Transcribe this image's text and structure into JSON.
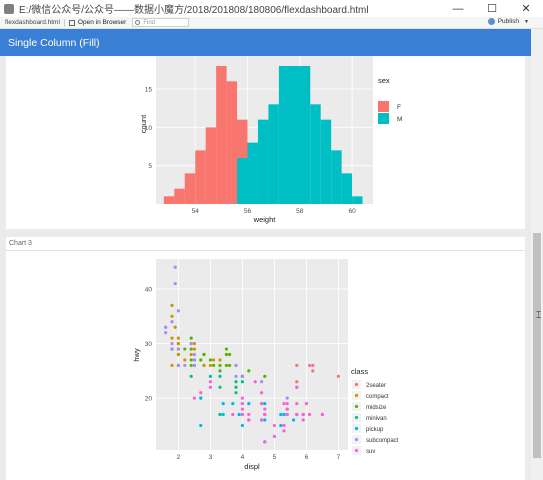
{
  "window": {
    "title": "E:/微信公众号/公众号——数据小魔方/2018/201808/180806/flexdashboard.html",
    "minimize": "—",
    "maximize": "☐",
    "close": "✕"
  },
  "toolbar": {
    "file_name": "flexdashboard.html",
    "open_in_browser": "Open in Browser",
    "find_placeholder": "Find",
    "publish": "Publish"
  },
  "navbar": {
    "title": "Single Column (Fill)"
  },
  "chart2": {
    "title": ""
  },
  "chart3": {
    "title": "Chart 3"
  },
  "chart_data": [
    {
      "type": "bar",
      "subtype": "histogram",
      "xlabel": "weight",
      "ylabel": "count",
      "x_ticks": [
        54,
        56,
        58,
        60
      ],
      "y_ticks": [
        5,
        10,
        15
      ],
      "legend_title": "sex",
      "legend_position": "right",
      "series": [
        {
          "name": "F",
          "color": "#f8766d",
          "bins": [
            {
              "x0": 52.8,
              "x1": 53.2,
              "count": 1
            },
            {
              "x0": 53.2,
              "x1": 53.6,
              "count": 2
            },
            {
              "x0": 53.6,
              "x1": 54.0,
              "count": 4
            },
            {
              "x0": 54.0,
              "x1": 54.4,
              "count": 7
            },
            {
              "x0": 54.4,
              "x1": 54.8,
              "count": 10
            },
            {
              "x0": 54.8,
              "x1": 55.2,
              "count": 18
            },
            {
              "x0": 55.2,
              "x1": 55.6,
              "count": 16
            },
            {
              "x0": 55.6,
              "x1": 56.0,
              "count": 11
            }
          ]
        },
        {
          "name": "M",
          "color": "#00bfc4",
          "bins": [
            {
              "x0": 55.6,
              "x1": 56.0,
              "count": 6
            },
            {
              "x0": 56.0,
              "x1": 56.4,
              "count": 8
            },
            {
              "x0": 56.4,
              "x1": 56.8,
              "count": 11
            },
            {
              "x0": 56.8,
              "x1": 57.2,
              "count": 13
            },
            {
              "x0": 57.2,
              "x1": 58.4,
              "count": 18
            },
            {
              "x0": 58.4,
              "x1": 58.8,
              "count": 13
            },
            {
              "x0": 58.8,
              "x1": 59.2,
              "count": 11
            },
            {
              "x0": 59.2,
              "x1": 59.6,
              "count": 7
            },
            {
              "x0": 59.6,
              "x1": 60.0,
              "count": 4
            },
            {
              "x0": 60.0,
              "x1": 60.4,
              "count": 1
            }
          ]
        }
      ],
      "xlim": [
        52.5,
        60.8
      ],
      "ylim": [
        0,
        18
      ]
    },
    {
      "type": "scatter",
      "xlabel": "displ",
      "ylabel": "hwy",
      "x_ticks": [
        2,
        3,
        4,
        5,
        6,
        7
      ],
      "y_ticks": [
        20,
        30,
        40
      ],
      "xlim": [
        1.3,
        7.3
      ],
      "ylim": [
        10.5,
        45.5
      ],
      "legend_title": "class",
      "legend_position": "right",
      "series": [
        {
          "name": "2seater",
          "color": "#f8766d",
          "points": [
            [
              5.7,
              26
            ],
            [
              5.7,
              23
            ],
            [
              6.2,
              26
            ],
            [
              6.2,
              25
            ],
            [
              7.0,
              24
            ]
          ]
        },
        {
          "name": "compact",
          "color": "#c49a00",
          "points": [
            [
              1.8,
              29
            ],
            [
              1.8,
              29
            ],
            [
              2.0,
              31
            ],
            [
              2.0,
              30
            ],
            [
              2.8,
              26
            ],
            [
              2.8,
              26
            ],
            [
              3.1,
              27
            ],
            [
              1.8,
              26
            ],
            [
              2.0,
              28
            ],
            [
              2.2,
              27
            ],
            [
              2.4,
              30
            ],
            [
              2.5,
              29
            ],
            [
              2.5,
              30
            ],
            [
              3.0,
              26
            ],
            [
              3.3,
              27
            ],
            [
              1.9,
              33
            ],
            [
              2.0,
              28
            ],
            [
              2.4,
              28
            ],
            [
              2.8,
              26
            ],
            [
              1.8,
              31
            ],
            [
              1.8,
              35
            ],
            [
              1.8,
              37
            ],
            [
              2.0,
              29
            ],
            [
              2.0,
              30
            ],
            [
              2.8,
              28
            ]
          ]
        },
        {
          "name": "midsize",
          "color": "#53b400",
          "points": [
            [
              2.4,
              29
            ],
            [
              2.4,
              26
            ],
            [
              3.1,
              26
            ],
            [
              3.5,
              29
            ],
            [
              3.6,
              26
            ],
            [
              2.5,
              27
            ],
            [
              2.7,
              27
            ],
            [
              3.3,
              26
            ],
            [
              3.8,
              26
            ],
            [
              2.4,
              31
            ],
            [
              3.5,
              26
            ],
            [
              4.0,
              24
            ],
            [
              4.7,
              24
            ],
            [
              4.2,
              25
            ],
            [
              1.8,
              29
            ],
            [
              2.2,
              29
            ],
            [
              2.5,
              26
            ],
            [
              3.0,
              27
            ],
            [
              3.3,
              25
            ],
            [
              2.0,
              26
            ],
            [
              3.6,
              28
            ],
            [
              2.8,
              28
            ],
            [
              3.5,
              28
            ],
            [
              2.4,
              27
            ]
          ]
        },
        {
          "name": "minivan",
          "color": "#00c094",
          "points": [
            [
              2.4,
              24
            ],
            [
              3.0,
              24
            ],
            [
              3.3,
              22
            ],
            [
              3.3,
              24
            ],
            [
              3.8,
              22
            ],
            [
              3.8,
              23
            ],
            [
              4.0,
              24
            ],
            [
              3.3,
              17
            ],
            [
              3.8,
              21
            ],
            [
              4.0,
              23
            ]
          ]
        },
        {
          "name": "pickup",
          "color": "#00b6eb",
          "points": [
            [
              2.7,
              20
            ],
            [
              2.7,
              15
            ],
            [
              3.4,
              17
            ],
            [
              3.4,
              19
            ],
            [
              4.0,
              17
            ],
            [
              4.7,
              17
            ],
            [
              4.7,
              12
            ],
            [
              5.2,
              17
            ],
            [
              5.7,
              17
            ],
            [
              5.9,
              17
            ],
            [
              4.7,
              16
            ],
            [
              5.3,
              17
            ],
            [
              5.6,
              16
            ],
            [
              4.6,
              16
            ],
            [
              5.4,
              17
            ],
            [
              3.7,
              19
            ],
            [
              3.9,
              17
            ],
            [
              4.7,
              19
            ],
            [
              2.7,
              20
            ],
            [
              4.0,
              15
            ],
            [
              4.6,
              19
            ],
            [
              5.4,
              18
            ],
            [
              4.2,
              19
            ],
            [
              4.7,
              17
            ],
            [
              5.2,
              15
            ]
          ]
        },
        {
          "name": "subcompact",
          "color": "#a58aff",
          "points": [
            [
              1.6,
              33
            ],
            [
              1.6,
              32
            ],
            [
              1.8,
              29
            ],
            [
              1.8,
              34
            ],
            [
              2.0,
              36
            ],
            [
              1.9,
              44
            ],
            [
              1.9,
              44
            ],
            [
              1.9,
              41
            ],
            [
              2.0,
              29
            ],
            [
              2.5,
              26
            ],
            [
              2.5,
              28
            ],
            [
              2.2,
              26
            ],
            [
              2.4,
              30
            ],
            [
              3.8,
              26
            ],
            [
              4.6,
              23
            ],
            [
              5.4,
              20
            ],
            [
              1.6,
              33
            ],
            [
              2.0,
              26
            ],
            [
              1.8,
              30
            ],
            [
              3.8,
              24
            ],
            [
              4.0,
              24
            ],
            [
              2.5,
              27
            ]
          ]
        },
        {
          "name": "suv",
          "color": "#fb61d7",
          "points": [
            [
              4.0,
              17
            ],
            [
              4.7,
              17
            ],
            [
              5.3,
              19
            ],
            [
              5.7,
              19
            ],
            [
              6.5,
              17
            ],
            [
              5.7,
              17
            ],
            [
              5.0,
              15
            ],
            [
              5.3,
              15
            ],
            [
              6.0,
              19
            ],
            [
              4.7,
              12
            ],
            [
              5.7,
              22
            ],
            [
              6.1,
              26
            ],
            [
              5.3,
              14
            ],
            [
              4.2,
              17
            ],
            [
              4.6,
              19
            ],
            [
              5.4,
              19
            ],
            [
              4.0,
              19
            ],
            [
              4.6,
              16
            ],
            [
              5.4,
              18
            ],
            [
              3.0,
              22
            ],
            [
              3.7,
              17
            ],
            [
              4.0,
              18
            ],
            [
              4.7,
              18
            ],
            [
              5.7,
              17
            ],
            [
              5.9,
              16
            ],
            [
              6.5,
              17
            ],
            [
              4.4,
              23
            ],
            [
              4.2,
              16
            ],
            [
              5.0,
              13
            ],
            [
              4.0,
              20
            ],
            [
              6.1,
              17
            ],
            [
              4.6,
              21
            ],
            [
              5.4,
              17
            ],
            [
              2.5,
              20
            ],
            [
              2.7,
              21
            ],
            [
              4.2,
              16
            ],
            [
              4.7,
              17
            ],
            [
              3.0,
              23
            ],
            [
              5.9,
              17
            ],
            [
              5.7,
              22
            ]
          ]
        }
      ]
    }
  ]
}
